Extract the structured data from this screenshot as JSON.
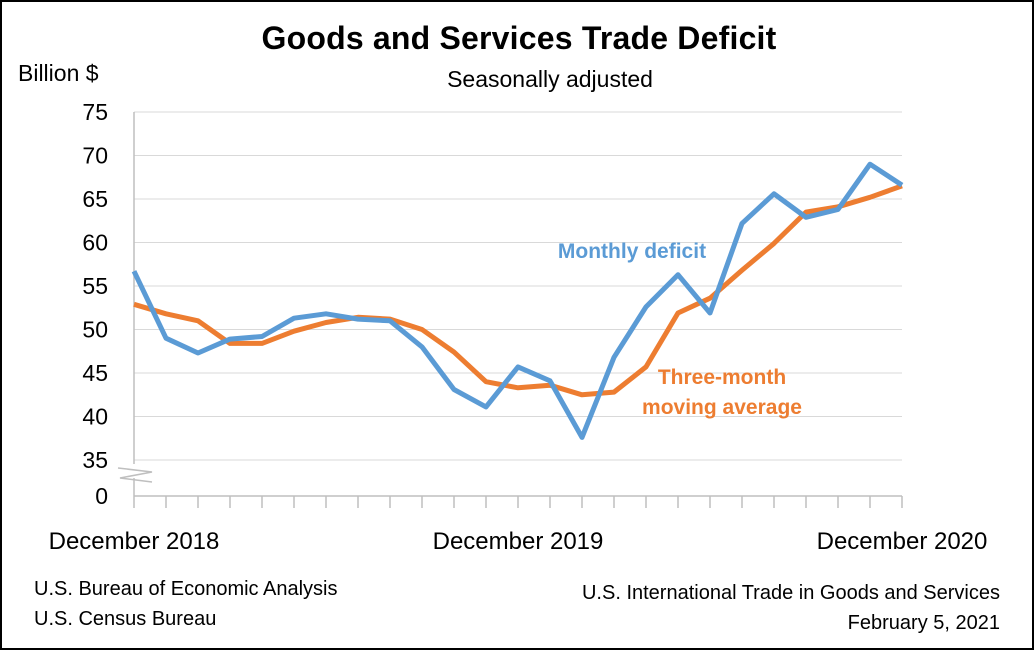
{
  "chart_data": {
    "type": "line",
    "title": "Goods and Services Trade Deficit",
    "subtitle": "Seasonally adjusted",
    "ylabel": "Billion $",
    "xlabel": "",
    "ylim": [
      35,
      75
    ],
    "y_ticks": [
      "75",
      "70",
      "65",
      "60",
      "55",
      "50",
      "45",
      "40",
      "35",
      "0"
    ],
    "y_axis_break": true,
    "x_tick_labels": [
      "December 2018",
      "December 2019",
      "December 2020"
    ],
    "x": [
      "2018-12",
      "2019-01",
      "2019-02",
      "2019-03",
      "2019-04",
      "2019-05",
      "2019-06",
      "2019-07",
      "2019-08",
      "2019-09",
      "2019-10",
      "2019-11",
      "2019-12",
      "2020-01",
      "2020-02",
      "2020-03",
      "2020-04",
      "2020-05",
      "2020-06",
      "2020-07",
      "2020-08",
      "2020-09",
      "2020-10",
      "2020-11",
      "2020-12"
    ],
    "grid": true,
    "series": [
      {
        "name": "Monthly deficit",
        "color": "#5B9BD5",
        "values": [
          56.7,
          49.0,
          47.3,
          48.9,
          49.2,
          51.3,
          51.8,
          51.2,
          51.0,
          48.0,
          43.1,
          41.1,
          45.7,
          44.1,
          37.6,
          46.8,
          52.6,
          56.3,
          51.9,
          62.2,
          65.6,
          62.9,
          63.8,
          69.0,
          66.6
        ]
      },
      {
        "name": "Three-month moving average",
        "color": "#ED7D31",
        "values": [
          52.9,
          51.8,
          51.0,
          48.4,
          48.4,
          49.8,
          50.8,
          51.4,
          51.2,
          50.0,
          47.4,
          44.0,
          43.3,
          43.6,
          42.5,
          42.8,
          45.7,
          51.9,
          53.6,
          56.8,
          59.9,
          63.5,
          64.1,
          65.2,
          66.5
        ]
      }
    ],
    "annotations": {
      "monthly": "Monthly deficit",
      "moving_line1": "Three-month",
      "moving_line2": "moving average"
    }
  },
  "footer": {
    "left_line1": "U.S. Bureau of Economic Analysis",
    "left_line2": "U.S. Census Bureau",
    "right_line1": "U.S. International Trade in Goods and Services",
    "right_line2": "February 5, 2021"
  }
}
